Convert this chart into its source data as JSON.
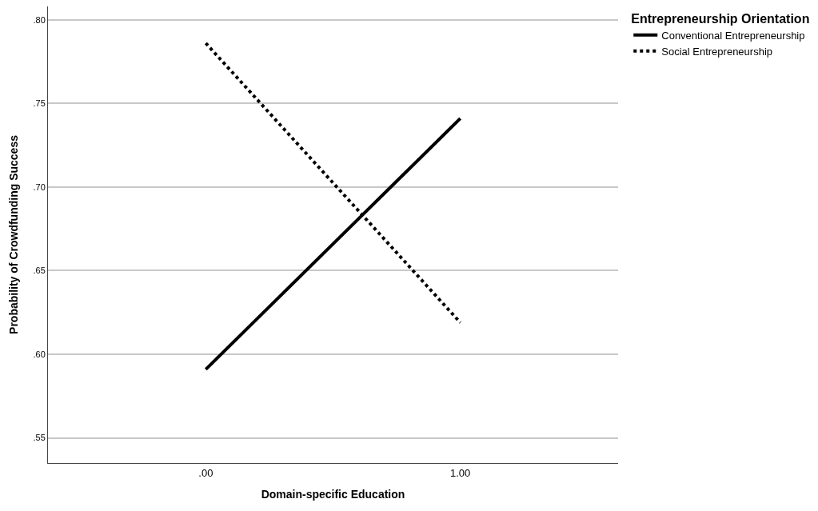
{
  "chart_data": {
    "type": "line",
    "xlabel": "Domain-specific Education",
    "ylabel": "Probability of Crowdfunding Success",
    "legend_title": "Entrepreneurship Orientation",
    "categories": [
      ".00",
      "1.00"
    ],
    "series": [
      {
        "name": "Conventional Entrepreneurship",
        "color": "#000000",
        "line_style": "solid",
        "values": [
          0.591,
          0.741
        ]
      },
      {
        "name": "Social Entrepreneurship",
        "color": "#000000",
        "line_style": "dotted",
        "values": [
          0.786,
          0.619
        ]
      }
    ],
    "ylim": [
      0.535,
      0.808
    ],
    "yticks": [
      {
        "value": 0.55,
        "label": ".55"
      },
      {
        "value": 0.6,
        "label": ".60"
      },
      {
        "value": 0.65,
        "label": ".65"
      },
      {
        "value": 0.7,
        "label": ".70"
      },
      {
        "value": 0.75,
        "label": ".75"
      },
      {
        "value": 0.8,
        "label": ".80"
      }
    ],
    "grid": "y",
    "legend": "top right",
    "marker": "none"
  }
}
